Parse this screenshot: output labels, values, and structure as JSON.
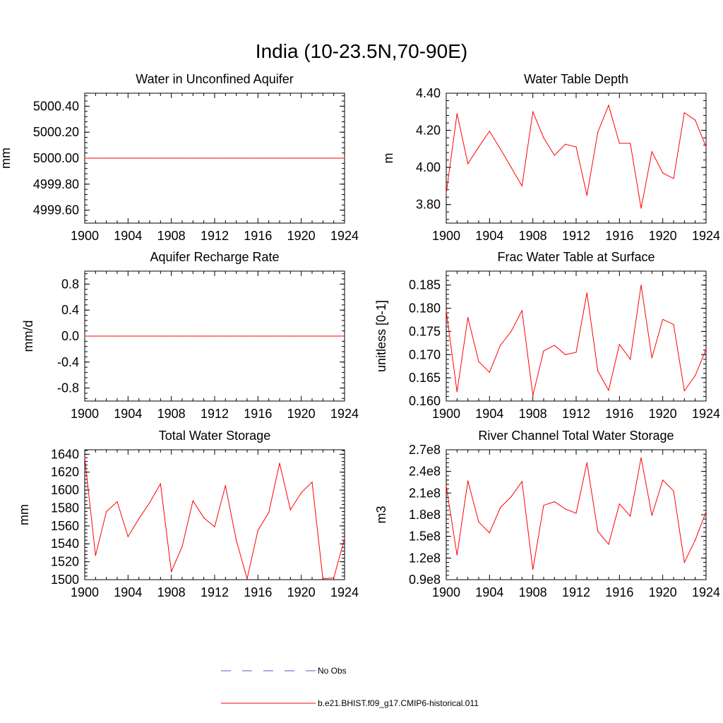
{
  "title": "India (10-23.5N,70-90E)",
  "legend": [
    {
      "label": "No Obs",
      "color": "#4b5bbf",
      "dash": true
    },
    {
      "label": "b.e21.BHIST.f09_g17.CMIP6-historical.011",
      "color": "#ff0000",
      "dash": false
    }
  ],
  "series_color": "#ff0000",
  "chart_data": [
    {
      "type": "line",
      "title": "Water in Unconfined Aquifer",
      "ylabel": "mm",
      "xlim": [
        1900,
        1924
      ],
      "xticks": [
        1900,
        1904,
        1908,
        1912,
        1916,
        1920,
        1924
      ],
      "ylim": [
        4999.5,
        5000.5
      ],
      "yticks": [
        4999.6,
        4999.8,
        5000.0,
        5000.2,
        5000.4
      ],
      "ytick_labels": [
        "4999.60",
        "4999.80",
        "5000.00",
        "5000.20",
        "5000.40"
      ],
      "yminor_step": 0.04,
      "x": [
        1900,
        1901,
        1902,
        1903,
        1904,
        1905,
        1906,
        1907,
        1908,
        1909,
        1910,
        1911,
        1912,
        1913,
        1914,
        1915,
        1916,
        1917,
        1918,
        1919,
        1920,
        1921,
        1922,
        1923,
        1924
      ],
      "values": [
        5000,
        5000,
        5000,
        5000,
        5000,
        5000,
        5000,
        5000,
        5000,
        5000,
        5000,
        5000,
        5000,
        5000,
        5000,
        5000,
        5000,
        5000,
        5000,
        5000,
        5000,
        5000,
        5000,
        5000,
        5000
      ]
    },
    {
      "type": "line",
      "title": "Water Table Depth",
      "ylabel": "m",
      "xlim": [
        1900,
        1924
      ],
      "xticks": [
        1900,
        1904,
        1908,
        1912,
        1916,
        1920,
        1924
      ],
      "ylim": [
        3.7,
        4.4
      ],
      "yticks": [
        3.8,
        4.0,
        4.2,
        4.4
      ],
      "ytick_labels": [
        "3.80",
        "4.00",
        "4.20",
        "4.40"
      ],
      "yminor_step": 0.04,
      "x": [
        1900,
        1901,
        1902,
        1903,
        1904,
        1905,
        1906,
        1907,
        1908,
        1909,
        1910,
        1911,
        1912,
        1913,
        1914,
        1915,
        1916,
        1917,
        1918,
        1919,
        1920,
        1921,
        1922,
        1923,
        1924
      ],
      "values": [
        3.86,
        4.29,
        4.02,
        4.11,
        4.195,
        4.1,
        4.0,
        3.9,
        4.3,
        4.16,
        4.065,
        4.125,
        4.11,
        3.85,
        4.19,
        4.335,
        4.13,
        4.13,
        3.78,
        4.085,
        3.97,
        3.94,
        4.295,
        4.255,
        4.11
      ]
    },
    {
      "type": "line",
      "title": "Aquifer Recharge Rate",
      "ylabel": "mm/d",
      "xlim": [
        1900,
        1924
      ],
      "xticks": [
        1900,
        1904,
        1908,
        1912,
        1916,
        1920,
        1924
      ],
      "ylim": [
        -1.0,
        1.0
      ],
      "yticks": [
        -0.8,
        -0.4,
        0.0,
        0.4,
        0.8
      ],
      "ytick_labels": [
        "-0.8",
        "-0.4",
        "0.0",
        "0.4",
        "0.8"
      ],
      "yminor_step": 0.08,
      "x": [
        1900,
        1901,
        1902,
        1903,
        1904,
        1905,
        1906,
        1907,
        1908,
        1909,
        1910,
        1911,
        1912,
        1913,
        1914,
        1915,
        1916,
        1917,
        1918,
        1919,
        1920,
        1921,
        1922,
        1923,
        1924
      ],
      "values": [
        0,
        0,
        0,
        0,
        0,
        0,
        0,
        0,
        0,
        0,
        0,
        0,
        0,
        0,
        0,
        0,
        0,
        0,
        0,
        0,
        0,
        0,
        0,
        0,
        0
      ]
    },
    {
      "type": "line",
      "title": "Frac Water Table at Surface",
      "ylabel": "unitless [0-1]",
      "xlim": [
        1900,
        1924
      ],
      "xticks": [
        1900,
        1904,
        1908,
        1912,
        1916,
        1920,
        1924
      ],
      "ylim": [
        0.16,
        0.188
      ],
      "yticks": [
        0.16,
        0.165,
        0.17,
        0.175,
        0.18,
        0.185
      ],
      "ytick_labels": [
        "0.160",
        "0.165",
        "0.170",
        "0.175",
        "0.180",
        "0.185"
      ],
      "yminor_step": 0.001,
      "x": [
        1900,
        1901,
        1902,
        1903,
        1904,
        1905,
        1906,
        1907,
        1908,
        1909,
        1910,
        1911,
        1912,
        1913,
        1914,
        1915,
        1916,
        1917,
        1918,
        1919,
        1920,
        1921,
        1922,
        1923,
        1924
      ],
      "values": [
        0.1795,
        0.162,
        0.178,
        0.1685,
        0.1662,
        0.172,
        0.175,
        0.1795,
        0.1612,
        0.1708,
        0.172,
        0.17,
        0.1705,
        0.1833,
        0.1665,
        0.1623,
        0.1722,
        0.169,
        0.185,
        0.1693,
        0.1776,
        0.1765,
        0.1622,
        0.1655,
        0.1712
      ]
    },
    {
      "type": "line",
      "title": "Total Water Storage",
      "ylabel": "mm",
      "xlim": [
        1900,
        1924
      ],
      "xticks": [
        1900,
        1904,
        1908,
        1912,
        1916,
        1920,
        1924
      ],
      "ylim": [
        1500,
        1645
      ],
      "yticks": [
        1500,
        1520,
        1540,
        1560,
        1580,
        1600,
        1620,
        1640
      ],
      "ytick_labels": [
        "1500",
        "1520",
        "1540",
        "1560",
        "1580",
        "1600",
        "1620",
        "1640"
      ],
      "yminor_step": 4,
      "x": [
        1900,
        1901,
        1902,
        1903,
        1904,
        1905,
        1906,
        1907,
        1908,
        1909,
        1910,
        1911,
        1912,
        1913,
        1914,
        1915,
        1916,
        1917,
        1918,
        1919,
        1920,
        1921,
        1922,
        1923,
        1924
      ],
      "values": [
        1636,
        1527,
        1576,
        1587,
        1548,
        1568,
        1586,
        1607,
        1509,
        1537,
        1588,
        1569,
        1559,
        1605,
        1544,
        1501,
        1555,
        1575,
        1630,
        1578,
        1597,
        1609,
        1501,
        1502,
        1546
      ]
    },
    {
      "type": "line",
      "title": "River Channel Total Water Storage",
      "ylabel": "m3",
      "xlim": [
        1900,
        1924
      ],
      "xticks": [
        1900,
        1904,
        1908,
        1912,
        1916,
        1920,
        1924
      ],
      "ylim": [
        90000000,
        270000000
      ],
      "yticks": [
        90000000,
        120000000,
        150000000,
        180000000,
        210000000,
        240000000,
        270000000
      ],
      "ytick_labels": [
        "0.9e8",
        "1.2e8",
        "1.5e8",
        "1.8e8",
        "2.1e8",
        "2.4e8",
        "2.7e8"
      ],
      "yminor_step": 6000000,
      "x": [
        1900,
        1901,
        1902,
        1903,
        1904,
        1905,
        1906,
        1907,
        1908,
        1909,
        1910,
        1911,
        1912,
        1913,
        1914,
        1915,
        1916,
        1917,
        1918,
        1919,
        1920,
        1921,
        1922,
        1923,
        1924
      ],
      "values": [
        220000000,
        124000000,
        227000000,
        170000000,
        155000000,
        190000000,
        205000000,
        226000000,
        104000000,
        193000000,
        198000000,
        188000000,
        182000000,
        252000000,
        157000000,
        139000000,
        195000000,
        178000000,
        259000000,
        179000000,
        228000000,
        213000000,
        114000000,
        145000000,
        184000000
      ]
    }
  ]
}
